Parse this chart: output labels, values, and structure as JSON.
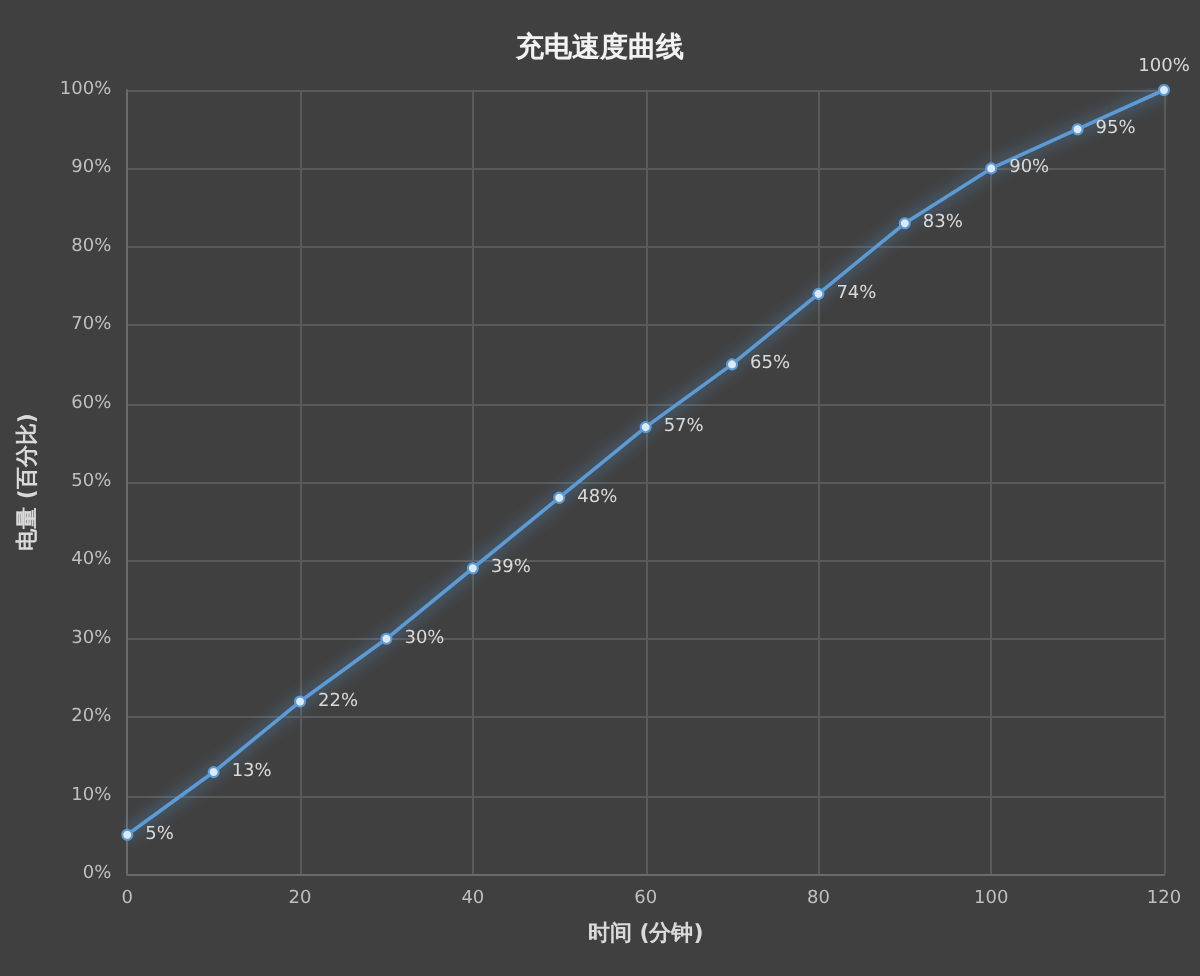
{
  "chart_data": {
    "type": "line",
    "title": "充电速度曲线",
    "xlabel": "时间 (分钟)",
    "ylabel": "电量 (百分比)",
    "x": [
      0,
      10,
      20,
      30,
      40,
      50,
      60,
      70,
      80,
      90,
      100,
      110,
      120
    ],
    "series": [
      {
        "color": "#5b9bd5",
        "values": [
          5,
          13,
          22,
          30,
          39,
          48,
          57,
          65,
          74,
          83,
          90,
          95,
          100
        ],
        "value_labels": [
          "5%",
          "13%",
          "22%",
          "30%",
          "39%",
          "48%",
          "57%",
          "65%",
          "74%",
          "83%",
          "90%",
          "95%",
          "100%"
        ]
      }
    ],
    "xlim": [
      0,
      120
    ],
    "xticks": [
      0,
      20,
      40,
      60,
      80,
      100,
      120
    ],
    "ylim": [
      0,
      100
    ],
    "yticks": [
      {
        "value": 0,
        "label": "0%"
      },
      {
        "value": 10,
        "label": "10%"
      },
      {
        "value": 20,
        "label": "20%"
      },
      {
        "value": 30,
        "label": "30%"
      },
      {
        "value": 40,
        "label": "40%"
      },
      {
        "value": 50,
        "label": "50%"
      },
      {
        "value": 60,
        "label": "60%"
      },
      {
        "value": 70,
        "label": "70%"
      },
      {
        "value": 80,
        "label": "80%"
      },
      {
        "value": 90,
        "label": "90%"
      },
      {
        "value": 100,
        "label": "100%"
      }
    ],
    "grid": true,
    "marker": "circle",
    "line_style": "solid"
  }
}
